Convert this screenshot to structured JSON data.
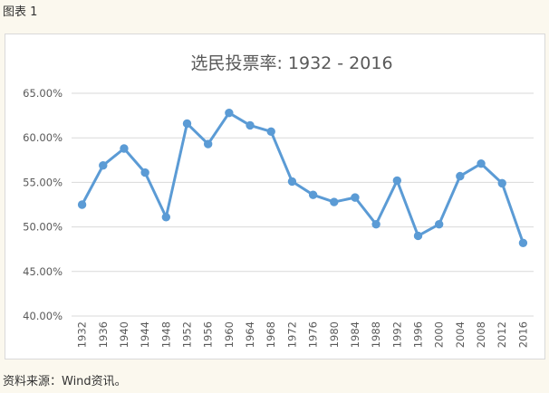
{
  "figure_label": "图表 1",
  "source_note": "资料来源：Wind资讯。",
  "colors": {
    "series": "#5b9bd5",
    "grid": "#d9d9d9",
    "axis_text": "#595959",
    "title": "#595959",
    "page_background": "#fbf8ee",
    "chart_background": "#ffffff"
  },
  "chart_data": {
    "type": "line",
    "title": "选民投票率: 1932 - 2016",
    "xlabel": "",
    "ylabel": "",
    "categories": [
      "1932",
      "1936",
      "1940",
      "1944",
      "1948",
      "1952",
      "1956",
      "1960",
      "1964",
      "1968",
      "1972",
      "1976",
      "1980",
      "1984",
      "1988",
      "1992",
      "1996",
      "2000",
      "2004",
      "2008",
      "2012",
      "2016"
    ],
    "series": [
      {
        "values": [
          52.5,
          56.9,
          58.8,
          56.1,
          51.1,
          61.6,
          59.3,
          62.8,
          61.4,
          60.7,
          55.1,
          53.6,
          52.8,
          53.3,
          50.3,
          55.2,
          49.0,
          50.3,
          55.7,
          57.1,
          54.9,
          48.2
        ],
        "marker": "circle"
      }
    ],
    "ylim": [
      40,
      65
    ],
    "yticks": [
      40,
      45,
      50,
      55,
      60,
      65
    ],
    "ytick_labels": [
      "40.00%",
      "45.00%",
      "50.00%",
      "55.00%",
      "60.00%",
      "65.00%"
    ],
    "xtick_rotation": -90,
    "grid": true,
    "legend": "none"
  }
}
